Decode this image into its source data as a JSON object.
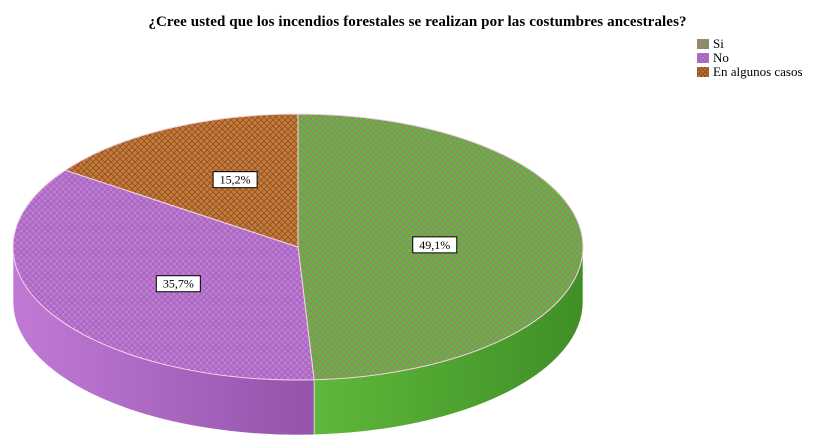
{
  "chart_data": {
    "type": "pie",
    "title": "¿Cree usted que los incendios forestales se realizan por las costumbres ancestrales?",
    "legend_position": "top-right",
    "style": "3d-exploded-none",
    "slices": [
      {
        "name": "Si",
        "value": 49.1,
        "label": "49,1%",
        "color": "#5fb83a",
        "color_dark": "#3f8f26",
        "pattern_alt": "#b56a8c"
      },
      {
        "name": "No",
        "value": 35.7,
        "label": "35,7%",
        "color": "#c07ad6",
        "color_dark": "#9354aa",
        "pattern_alt": "#9a62b0"
      },
      {
        "name": "En algunos casos",
        "value": 15.2,
        "label": "15,2%",
        "color": "#c77a3a",
        "color_dark": "#8e5224",
        "pattern_alt": "#8a4f22"
      }
    ]
  }
}
